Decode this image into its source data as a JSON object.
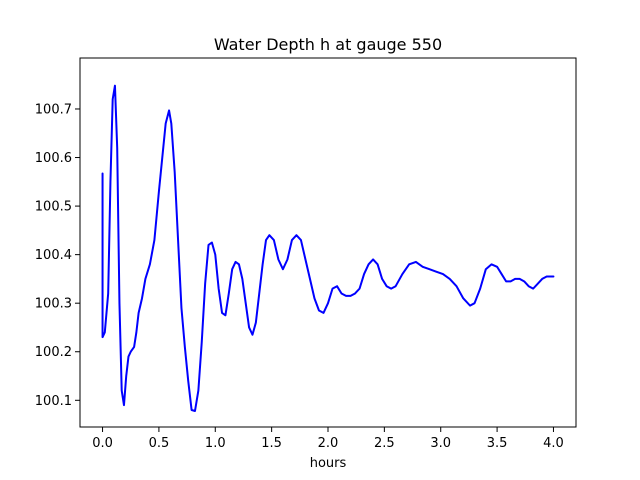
{
  "chart_data": {
    "type": "line",
    "title": "Water Depth h at gauge 550",
    "xlabel": "hours",
    "ylabel": "",
    "xlim": [
      -0.2,
      4.2
    ],
    "ylim": [
      100.045,
      100.805
    ],
    "xticks": [
      0.0,
      0.5,
      1.0,
      1.5,
      2.0,
      2.5,
      3.0,
      3.5,
      4.0
    ],
    "xtick_labels": [
      "0.0",
      "0.5",
      "1.0",
      "1.5",
      "2.0",
      "2.5",
      "3.0",
      "3.5",
      "4.0"
    ],
    "yticks": [
      100.1,
      100.2,
      100.3,
      100.4,
      100.5,
      100.6,
      100.7
    ],
    "ytick_labels": [
      "100.1",
      "100.2",
      "100.3",
      "100.4",
      "100.5",
      "100.6",
      "100.7"
    ],
    "grid": false,
    "series": [
      {
        "color": "#0000ff",
        "x": [
          0.0,
          0.0,
          0.02,
          0.05,
          0.07,
          0.09,
          0.11,
          0.13,
          0.15,
          0.17,
          0.19,
          0.21,
          0.23,
          0.25,
          0.28,
          0.3,
          0.32,
          0.35,
          0.38,
          0.42,
          0.46,
          0.5,
          0.53,
          0.56,
          0.59,
          0.61,
          0.64,
          0.67,
          0.7,
          0.73,
          0.76,
          0.79,
          0.82,
          0.85,
          0.88,
          0.91,
          0.94,
          0.97,
          1.0,
          1.03,
          1.06,
          1.09,
          1.12,
          1.15,
          1.18,
          1.21,
          1.24,
          1.27,
          1.3,
          1.33,
          1.36,
          1.39,
          1.42,
          1.45,
          1.48,
          1.52,
          1.56,
          1.6,
          1.64,
          1.68,
          1.72,
          1.76,
          1.8,
          1.84,
          1.88,
          1.92,
          1.96,
          2.0,
          2.04,
          2.08,
          2.12,
          2.16,
          2.2,
          2.24,
          2.28,
          2.32,
          2.36,
          2.4,
          2.44,
          2.48,
          2.52,
          2.56,
          2.6,
          2.66,
          2.72,
          2.78,
          2.84,
          2.9,
          2.96,
          3.02,
          3.08,
          3.14,
          3.2,
          3.26,
          3.3,
          3.35,
          3.4,
          3.45,
          3.5,
          3.54,
          3.58,
          3.62,
          3.66,
          3.7,
          3.74,
          3.78,
          3.82,
          3.86,
          3.9,
          3.94,
          3.98,
          4.0
        ],
        "y": [
          100.567,
          100.23,
          100.24,
          100.32,
          100.55,
          100.72,
          100.748,
          100.62,
          100.3,
          100.12,
          100.09,
          100.15,
          100.19,
          100.2,
          100.21,
          100.24,
          100.28,
          100.31,
          100.35,
          100.38,
          100.43,
          100.53,
          100.6,
          100.67,
          100.697,
          100.67,
          100.57,
          100.43,
          100.29,
          100.21,
          100.14,
          100.08,
          100.078,
          100.12,
          100.22,
          100.34,
          100.42,
          100.425,
          100.4,
          100.33,
          100.28,
          100.275,
          100.32,
          100.37,
          100.385,
          100.38,
          100.35,
          100.3,
          100.25,
          100.235,
          100.26,
          100.32,
          100.38,
          100.43,
          100.44,
          100.43,
          100.39,
          100.37,
          100.39,
          100.43,
          100.44,
          100.43,
          100.39,
          100.35,
          100.31,
          100.285,
          100.28,
          100.3,
          100.33,
          100.335,
          100.32,
          100.315,
          100.315,
          100.32,
          100.33,
          100.36,
          100.38,
          100.39,
          100.38,
          100.35,
          100.335,
          100.33,
          100.335,
          100.36,
          100.38,
          100.385,
          100.375,
          100.37,
          100.365,
          100.36,
          100.35,
          100.335,
          100.31,
          100.295,
          100.3,
          100.33,
          100.37,
          100.38,
          100.375,
          100.36,
          100.345,
          100.345,
          100.35,
          100.35,
          100.345,
          100.335,
          100.33,
          100.34,
          100.35,
          100.355,
          100.355,
          100.355
        ]
      }
    ]
  }
}
